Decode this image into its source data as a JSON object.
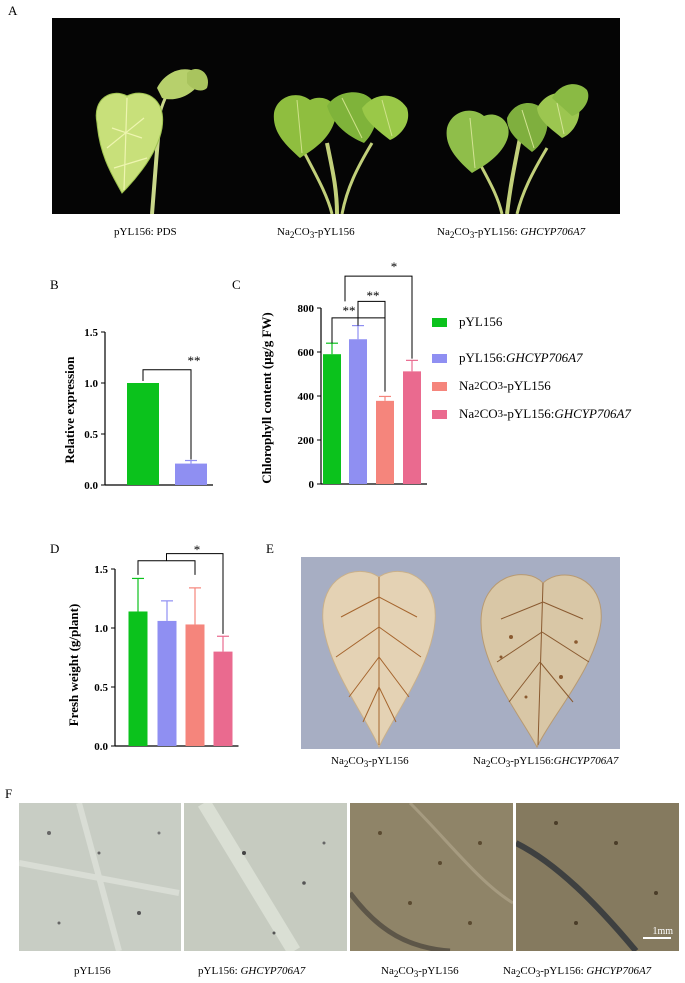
{
  "panels": {
    "a": {
      "letter": "A",
      "captions": [
        {
          "plain": "pYL156: PDS",
          "italic": ""
        },
        {
          "pre": "Na",
          "sub1": "2",
          "mid": "CO",
          "sub2": "3",
          "post": "-pYL156",
          "italic": ""
        },
        {
          "pre": "Na",
          "sub1": "2",
          "mid": "CO",
          "sub2": "3",
          "post": "-pYL156: ",
          "italic": "GHCYP706A7"
        }
      ]
    },
    "b": {
      "letter": "B",
      "ylabel": "Relative expression",
      "significance": "**"
    },
    "c": {
      "letter": "C",
      "ylabel": "Chlorophyll content (μg/g FW)",
      "significance": [
        "**",
        "**",
        "*"
      ]
    },
    "d": {
      "letter": "D",
      "ylabel": "Fresh weight (g/plant)",
      "significance": "*"
    },
    "e": {
      "letter": "E",
      "captions": [
        {
          "pre": "Na",
          "sub1": "2",
          "mid": "CO",
          "sub2": "3",
          "post": "-pYL156",
          "italic": ""
        },
        {
          "pre": "Na",
          "sub1": "2",
          "mid": "CO",
          "sub2": "3",
          "post": "-pYL156:",
          "italic": "GHCYP706A7"
        }
      ]
    },
    "f": {
      "letter": "F",
      "scalebar": "1mm",
      "captions": [
        {
          "plain": "pYL156",
          "italic": ""
        },
        {
          "plain": "pYL156: ",
          "italic": "GHCYP706A7"
        },
        {
          "pre": "Na",
          "sub1": "2",
          "mid": "CO",
          "sub2": "3",
          "post": "-pYL156",
          "italic": ""
        },
        {
          "pre": "Na",
          "sub1": "2",
          "mid": "CO",
          "sub2": "3",
          "post": "-pYL156: ",
          "italic": "GHCYP706A7"
        }
      ]
    }
  },
  "legend": [
    {
      "plain": "pYL156",
      "italic": "",
      "color": "#0bc21c"
    },
    {
      "plain": "pYL156:",
      "italic": "GHCYP706A7",
      "color": "#8f8ff2"
    },
    {
      "pre": "Na",
      "sub1": "2",
      "mid": "CO",
      "sub2": "3",
      "post": "-pYL156",
      "italic": "",
      "color": "#f5857c"
    },
    {
      "pre": "Na",
      "sub1": "2",
      "mid": "CO",
      "sub2": "3",
      "post": "-pYL156:",
      "italic": "GHCYP706A7",
      "color": "#ea6a8f"
    }
  ],
  "chart_data": [
    {
      "type": "bar",
      "panel": "B",
      "title": "",
      "xlabel": "",
      "ylabel": "Relative expression",
      "ylim": [
        0,
        1.5
      ],
      "yticks": [
        "0.0",
        "0.5",
        "1.0",
        "1.5"
      ],
      "series": [
        {
          "value": 1.0,
          "err": 0.0,
          "color": "#0bc21c"
        },
        {
          "value": 0.21,
          "err": 0.03,
          "color": "#8f8ff2"
        }
      ]
    },
    {
      "type": "bar",
      "panel": "C",
      "title": "",
      "xlabel": "",
      "ylabel": "Chlorophyll content (μg/g FW)",
      "ylim": [
        0,
        800
      ],
      "yticks": [
        "0",
        "200",
        "400",
        "600",
        "800"
      ],
      "series": [
        {
          "value": 590,
          "err": 50,
          "color": "#0bc21c"
        },
        {
          "value": 658,
          "err": 62,
          "color": "#8f8ff2"
        },
        {
          "value": 378,
          "err": 20,
          "color": "#f5857c"
        },
        {
          "value": 512,
          "err": 50,
          "color": "#ea6a8f"
        }
      ]
    },
    {
      "type": "bar",
      "panel": "D",
      "title": "",
      "xlabel": "",
      "ylabel": "Fresh weight (g/plant)",
      "ylim": [
        0,
        1.5
      ],
      "yticks": [
        "0.0",
        "0.5",
        "1.0",
        "1.5"
      ],
      "series": [
        {
          "value": 1.14,
          "err": 0.28,
          "color": "#0bc21c"
        },
        {
          "value": 1.06,
          "err": 0.17,
          "color": "#8f8ff2"
        },
        {
          "value": 1.03,
          "err": 0.31,
          "color": "#f5857c"
        },
        {
          "value": 0.8,
          "err": 0.13,
          "color": "#ea6a8f"
        }
      ]
    }
  ]
}
